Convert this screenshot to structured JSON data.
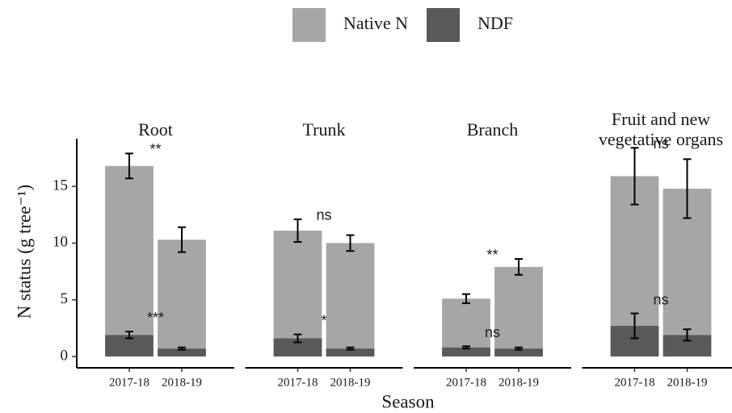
{
  "chart_data": {
    "type": "bar",
    "stacked": true,
    "x_label": "Season",
    "y_label": "N status (g tree⁻¹)",
    "facets": [
      "Root",
      "Trunk",
      "Branch",
      "Fruit and new vegetative organs"
    ],
    "categories": [
      "2017-18",
      "2018-19"
    ],
    "series": [
      {
        "name": "Native N",
        "color": "#a6a6a6",
        "values": [
          [
            14.9,
            9.6
          ],
          [
            9.5,
            9.3
          ],
          [
            4.3,
            7.2
          ],
          [
            13.2,
            12.9
          ]
        ],
        "errors": [
          [
            1.1,
            1.1
          ],
          [
            1.0,
            0.7
          ],
          [
            0.4,
            0.7
          ],
          [
            2.5,
            2.6
          ]
        ],
        "significance": [
          "**",
          "ns",
          "**",
          "ns"
        ]
      },
      {
        "name": "NDF",
        "color": "#595959",
        "values": [
          [
            1.9,
            0.7
          ],
          [
            1.6,
            0.7
          ],
          [
            0.8,
            0.7
          ],
          [
            2.7,
            1.9
          ]
        ],
        "errors": [
          [
            0.3,
            0.1
          ],
          [
            0.35,
            0.1
          ],
          [
            0.1,
            0.1
          ],
          [
            1.1,
            0.5
          ]
        ],
        "significance": [
          "***",
          "*",
          "ns",
          "ns"
        ]
      }
    ],
    "ylim": [
      -1,
      19.2
    ],
    "yticks": [
      0,
      5,
      10,
      15
    ],
    "legend": "top"
  }
}
